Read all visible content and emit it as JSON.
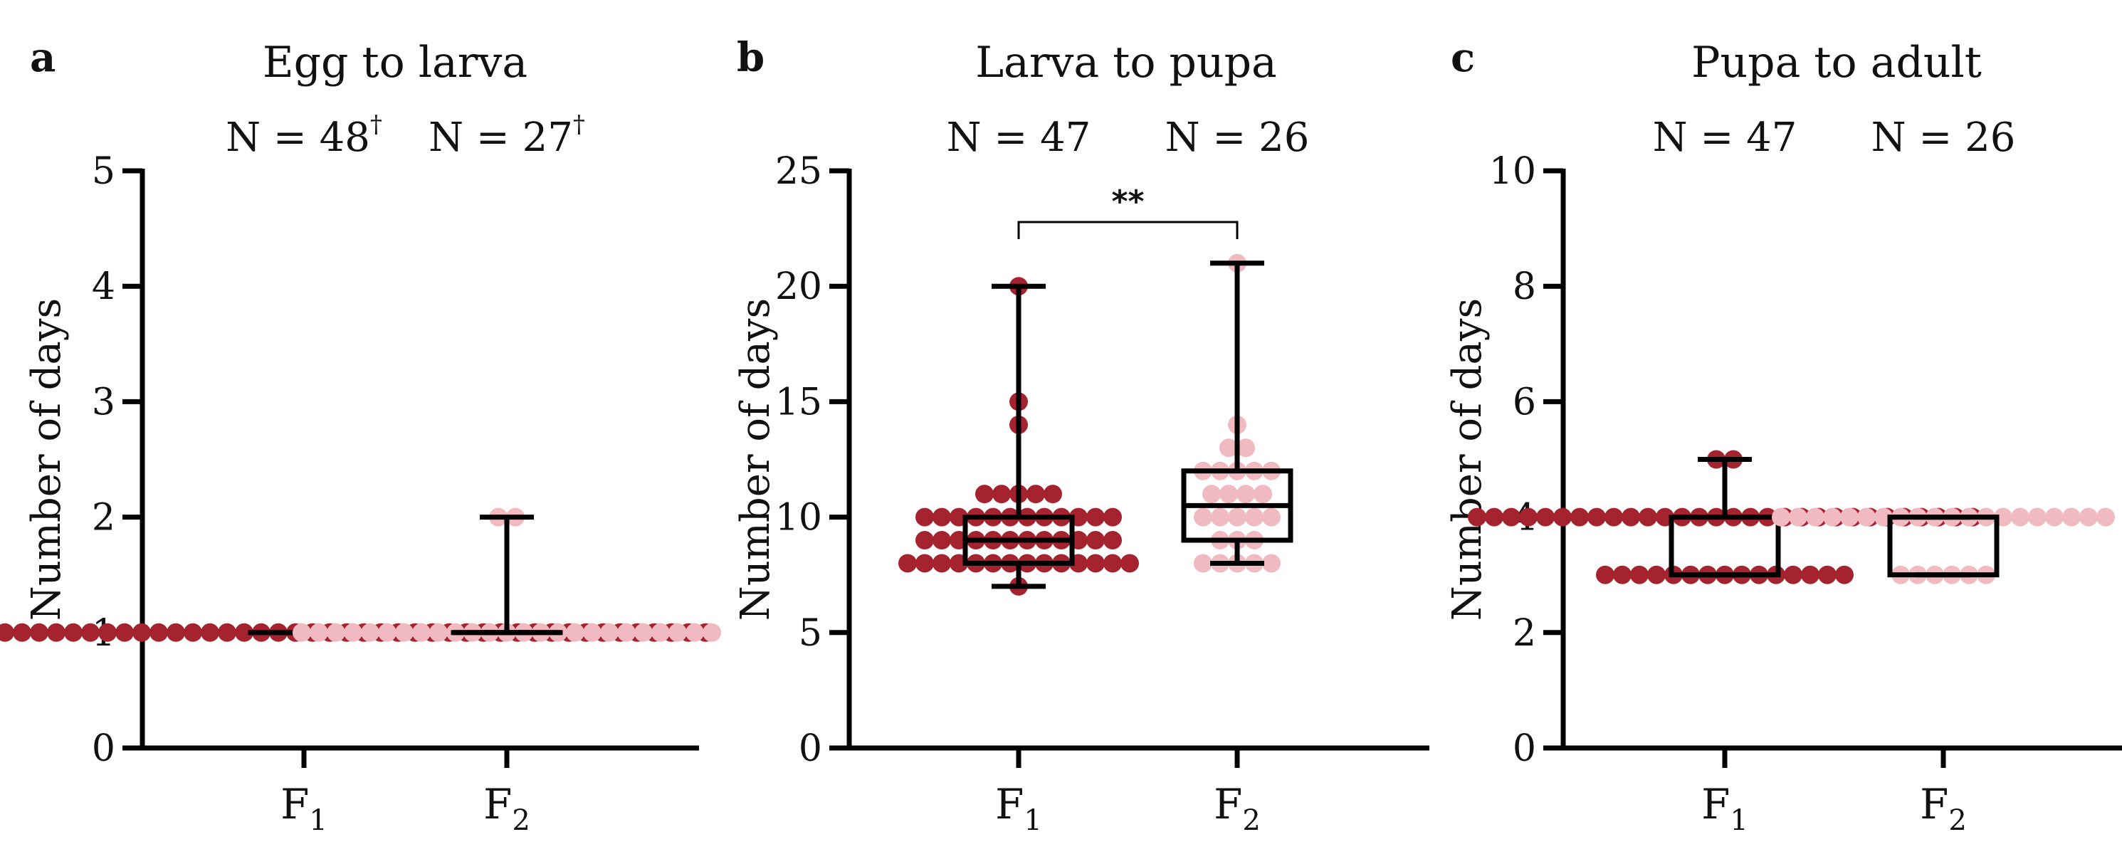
{
  "colors": {
    "F1": "#A4232F",
    "F2": "#F1B9C0"
  },
  "chart_data": [
    {
      "type": "box",
      "panel": "a",
      "title": "Egg to larva",
      "ylabel": "Number of days",
      "ylim": [
        0,
        5
      ],
      "yticks": [
        "0",
        "1",
        "2",
        "3",
        "4",
        "5"
      ],
      "groups": [
        {
          "name": "F",
          "sub": "1",
          "n_label": "N = 48",
          "n_sup": "†",
          "box": {
            "min": 1,
            "q1": 1,
            "median": 1,
            "q3": 1,
            "max": 1
          },
          "points": [
            1,
            1,
            1,
            1,
            1,
            1,
            1,
            1,
            1,
            1,
            1,
            1,
            1,
            1,
            1,
            1,
            1,
            1,
            1,
            1,
            1,
            1,
            1,
            1,
            1,
            1,
            1,
            1,
            1,
            1,
            1,
            1,
            1,
            1,
            1,
            1,
            1,
            1,
            1,
            1,
            1,
            1,
            1,
            1,
            1,
            1,
            1,
            1
          ]
        },
        {
          "name": "F",
          "sub": "2",
          "n_label": "N = 27",
          "n_sup": "†",
          "box": {
            "min": 1,
            "q1": 1,
            "median": 1,
            "q3": 1,
            "max": 2
          },
          "points": [
            1,
            1,
            1,
            1,
            1,
            1,
            1,
            1,
            1,
            1,
            1,
            1,
            1,
            1,
            1,
            1,
            1,
            1,
            1,
            1,
            1,
            1,
            1,
            1,
            1,
            2,
            2
          ]
        }
      ]
    },
    {
      "type": "box",
      "panel": "b",
      "title": "Larva to pupa",
      "ylabel": "Number of days",
      "ylim": [
        0,
        25
      ],
      "yticks": [
        "0",
        "5",
        "10",
        "15",
        "20",
        "25"
      ],
      "significance": "**",
      "groups": [
        {
          "name": "F",
          "sub": "1",
          "n_label": "N = 47",
          "n_sup": "",
          "box": {
            "min": 7,
            "q1": 8,
            "median": 9,
            "q3": 10,
            "max": 20
          },
          "points": [
            7,
            8,
            8,
            8,
            8,
            8,
            8,
            8,
            8,
            8,
            8,
            8,
            8,
            8,
            8,
            9,
            9,
            9,
            9,
            9,
            9,
            9,
            9,
            9,
            9,
            9,
            9,
            10,
            10,
            10,
            10,
            10,
            10,
            10,
            10,
            10,
            10,
            10,
            10,
            11,
            11,
            11,
            11,
            11,
            14,
            15,
            20
          ]
        },
        {
          "name": "F",
          "sub": "2",
          "n_label": "N = 26",
          "n_sup": "",
          "box": {
            "min": 8,
            "q1": 9,
            "median": 10.5,
            "q3": 12,
            "max": 21
          },
          "points": [
            8,
            8,
            8,
            8,
            8,
            9,
            9,
            9,
            10,
            10,
            10,
            10,
            10,
            11,
            11,
            11,
            11,
            12,
            12,
            12,
            12,
            12,
            13,
            13,
            14,
            21
          ]
        }
      ]
    },
    {
      "type": "box",
      "panel": "c",
      "title": "Pupa to adult",
      "ylabel": "Number of days",
      "ylim": [
        0,
        10
      ],
      "yticks": [
        "0",
        "2",
        "4",
        "6",
        "8",
        "10"
      ],
      "groups": [
        {
          "name": "F",
          "sub": "1",
          "n_label": "N = 47",
          "n_sup": "",
          "box": {
            "min": 3,
            "q1": 3,
            "median": 4,
            "q3": 4,
            "max": 5
          },
          "points": [
            3,
            3,
            3,
            3,
            3,
            3,
            3,
            3,
            3,
            3,
            3,
            3,
            3,
            3,
            3,
            4,
            4,
            4,
            4,
            4,
            4,
            4,
            4,
            4,
            4,
            4,
            4,
            4,
            4,
            4,
            4,
            4,
            4,
            4,
            4,
            4,
            4,
            4,
            4,
            4,
            4,
            4,
            4,
            4,
            4,
            5,
            5
          ]
        },
        {
          "name": "F",
          "sub": "2",
          "n_label": "N = 26",
          "n_sup": "",
          "box": {
            "min": 3,
            "q1": 3,
            "median": 4,
            "q3": 4,
            "max": 4
          },
          "points": [
            3,
            3,
            3,
            3,
            3,
            3,
            4,
            4,
            4,
            4,
            4,
            4,
            4,
            4,
            4,
            4,
            4,
            4,
            4,
            4,
            4,
            4,
            4,
            4,
            4,
            4
          ]
        }
      ]
    }
  ]
}
